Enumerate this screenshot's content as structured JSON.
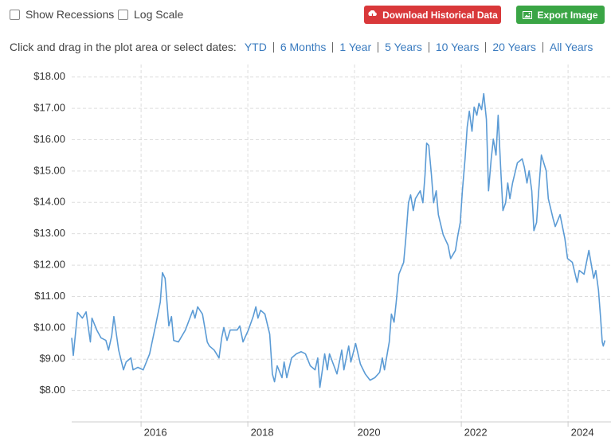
{
  "controls": {
    "checkboxes": [
      "Show Recessions",
      "Log Scale"
    ],
    "buttons": [
      "Download Historical Data",
      "Export Image"
    ],
    "range_prompt": "Click and drag in the plot area or select dates:",
    "range_links": [
      "YTD",
      "6 Months",
      "1 Year",
      "5 Years",
      "10 Years",
      "20 Years",
      "All Years"
    ]
  },
  "chart_data": {
    "type": "line",
    "color": "#5b9bd5",
    "grid": true,
    "xlim": [
      2014.7,
      2024.7
    ],
    "xticks": [
      2016,
      2018,
      2020,
      2022,
      2024
    ],
    "ylim": [
      7,
      18.4
    ],
    "yticks": [
      {
        "value": 8,
        "label": "$8.00"
      },
      {
        "value": 9,
        "label": "$9.00"
      },
      {
        "value": 10,
        "label": "$10.00"
      },
      {
        "value": 11,
        "label": "$11.00"
      },
      {
        "value": 12,
        "label": "$12.00"
      },
      {
        "value": 13,
        "label": "$13.00"
      },
      {
        "value": 14,
        "label": "$14.00"
      },
      {
        "value": 15,
        "label": "$15.00"
      },
      {
        "value": 16,
        "label": "$16.00"
      },
      {
        "value": 17,
        "label": "$17.00"
      },
      {
        "value": 18,
        "label": "$18.00"
      }
    ],
    "x": [
      2014.7,
      2014.73,
      2014.81,
      2014.9,
      2014.97,
      2015.05,
      2015.08,
      2015.17,
      2015.25,
      2015.34,
      2015.39,
      2015.45,
      2015.49,
      2015.58,
      2015.67,
      2015.72,
      2015.81,
      2015.85,
      2015.94,
      2016.04,
      2016.16,
      2016.27,
      2016.36,
      2016.4,
      2016.45,
      2016.52,
      2016.57,
      2016.61,
      2016.7,
      2016.83,
      2016.97,
      2017.01,
      2017.06,
      2017.15,
      2017.24,
      2017.28,
      2017.37,
      2017.46,
      2017.51,
      2017.55,
      2017.61,
      2017.67,
      2017.8,
      2017.85,
      2017.91,
      2018.01,
      2018.1,
      2018.15,
      2018.19,
      2018.24,
      2018.32,
      2018.41,
      2018.46,
      2018.5,
      2018.55,
      2018.64,
      2018.68,
      2018.73,
      2018.82,
      2018.91,
      2019.0,
      2019.08,
      2019.17,
      2019.26,
      2019.31,
      2019.35,
      2019.44,
      2019.49,
      2019.53,
      2019.67,
      2019.76,
      2019.8,
      2019.89,
      2019.93,
      2020.02,
      2020.11,
      2020.2,
      2020.29,
      2020.38,
      2020.47,
      2020.52,
      2020.56,
      2020.65,
      2020.69,
      2020.74,
      2020.78,
      2020.83,
      2020.92,
      2020.96,
      2021.01,
      2021.05,
      2021.1,
      2021.14,
      2021.23,
      2021.28,
      2021.32,
      2021.35,
      2021.39,
      2021.44,
      2021.48,
      2021.53,
      2021.57,
      2021.66,
      2021.75,
      2021.8,
      2021.89,
      2021.93,
      2021.98,
      2022.02,
      2022.07,
      2022.11,
      2022.15,
      2022.2,
      2022.24,
      2022.29,
      2022.33,
      2022.38,
      2022.42,
      2022.47,
      2022.51,
      2022.56,
      2022.6,
      2022.65,
      2022.69,
      2022.74,
      2022.78,
      2022.83,
      2022.87,
      2022.91,
      2022.96,
      2023.05,
      2023.14,
      2023.18,
      2023.23,
      2023.27,
      2023.32,
      2023.36,
      2023.41,
      2023.45,
      2023.5,
      2023.59,
      2023.63,
      2023.72,
      2023.76,
      2023.85,
      2023.94,
      2023.99,
      2024.08,
      2024.17,
      2024.21,
      2024.3,
      2024.39,
      2024.48,
      2024.52,
      2024.57,
      2024.61,
      2024.64,
      2024.66,
      2024.69
    ],
    "values": [
      9.68,
      9.12,
      10.49,
      10.31,
      10.51,
      9.55,
      10.31,
      9.93,
      9.68,
      9.6,
      9.29,
      9.75,
      10.36,
      9.29,
      8.66,
      8.91,
      9.04,
      8.66,
      8.74,
      8.66,
      9.17,
      10.06,
      10.82,
      11.76,
      11.58,
      10.06,
      10.36,
      9.6,
      9.55,
      9.93,
      10.56,
      10.31,
      10.67,
      10.44,
      9.55,
      9.42,
      9.29,
      9.04,
      9.68,
      10.01,
      9.6,
      9.93,
      9.93,
      10.06,
      9.55,
      9.93,
      10.36,
      10.67,
      10.31,
      10.56,
      10.44,
      9.8,
      8.53,
      8.28,
      8.79,
      8.41,
      8.91,
      8.41,
      9.04,
      9.17,
      9.24,
      9.17,
      8.79,
      8.66,
      9.04,
      8.1,
      9.17,
      8.66,
      9.17,
      8.53,
      9.29,
      8.66,
      9.42,
      8.91,
      9.5,
      8.84,
      8.53,
      8.33,
      8.41,
      8.58,
      9.04,
      8.66,
      9.55,
      10.44,
      10.18,
      10.82,
      11.71,
      12.09,
      12.85,
      13.99,
      14.24,
      13.74,
      14.12,
      14.37,
      13.99,
      14.88,
      15.89,
      15.82,
      14.88,
      13.99,
      14.37,
      13.61,
      12.97,
      12.64,
      12.21,
      12.47,
      12.9,
      13.36,
      14.37,
      15.39,
      16.4,
      16.91,
      16.27,
      17.04,
      16.78,
      17.16,
      16.96,
      17.47,
      16.65,
      14.37,
      15.39,
      16.02,
      15.51,
      16.78,
      15.01,
      13.74,
      13.99,
      14.62,
      14.12,
      14.62,
      15.26,
      15.39,
      15.13,
      14.62,
      15.01,
      14.37,
      13.1,
      13.36,
      14.37,
      15.51,
      15.01,
      14.12,
      13.48,
      13.23,
      13.61,
      12.85,
      12.21,
      12.09,
      11.45,
      11.83,
      11.71,
      12.47,
      11.58,
      11.83,
      11.2,
      10.31,
      9.55,
      9.42,
      9.6
    ]
  }
}
